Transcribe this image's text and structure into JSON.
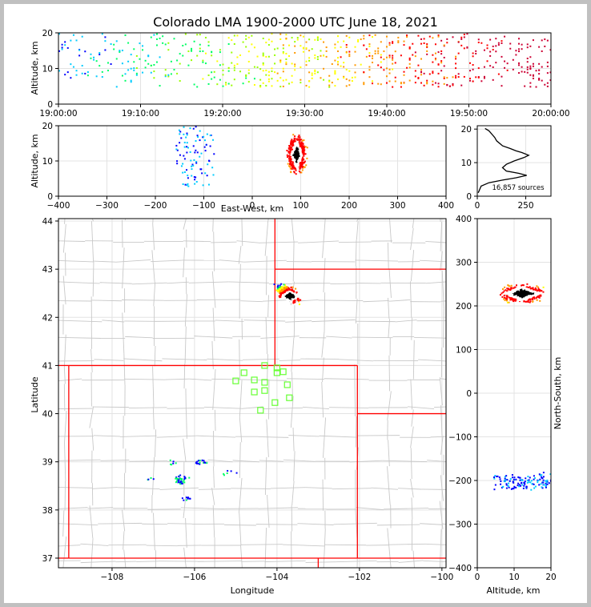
{
  "title": "Colorado LMA 1900-2000 UTC June 18, 2021",
  "palette": [
    "#0000ff",
    "#00ccff",
    "#00ff66",
    "#99ff00",
    "#ffff00",
    "#ff9900",
    "#ff0000",
    "#cc0033",
    "#ffffff",
    "#888888",
    "#000000"
  ],
  "map": {
    "state_line_color": "#ff0000",
    "county_line_color": "#c8c8c8",
    "station_color": "#66ff33"
  },
  "chart_data": [
    {
      "id": "time-height",
      "type": "heatmap",
      "xlabel": "",
      "ylabel": "Altitude, km",
      "xlim": [
        "19:00:00",
        "20:00:00"
      ],
      "ylim": [
        0,
        20
      ],
      "x_ticks": [
        "19:00:00",
        "19:10:00",
        "19:20:00",
        "19:30:00",
        "19:40:00",
        "19:50:00",
        "20:00:00"
      ],
      "y_ticks": [
        "0",
        "10",
        "20"
      ],
      "grid": true
    },
    {
      "id": "east-west-height",
      "type": "heatmap",
      "xlabel": "East-West, km",
      "ylabel": "Altitude, km",
      "xlim": [
        -400,
        400
      ],
      "ylim": [
        0,
        20
      ],
      "x_ticks": [
        "−400",
        "−300",
        "−200",
        "−100",
        "0",
        "100",
        "200",
        "300",
        "400"
      ],
      "y_ticks": [
        "0",
        "10",
        "20"
      ],
      "grid": true
    },
    {
      "id": "altitude-histogram",
      "type": "line",
      "xlim": [
        0,
        380
      ],
      "ylim": [
        0,
        21
      ],
      "x_ticks": [
        "0",
        "250"
      ],
      "y_ticks": [
        "0",
        "10",
        "20"
      ],
      "annotation": "16,857 sources",
      "profile": [
        [
          5,
          1
        ],
        [
          20,
          3
        ],
        [
          60,
          4
        ],
        [
          130,
          4.8
        ],
        [
          200,
          5.5
        ],
        [
          255,
          6.2
        ],
        [
          215,
          6.8
        ],
        [
          150,
          7.5
        ],
        [
          130,
          8.5
        ],
        [
          150,
          9.5
        ],
        [
          190,
          10.5
        ],
        [
          240,
          11.5
        ],
        [
          265,
          12.2
        ],
        [
          230,
          13
        ],
        [
          200,
          13.5
        ],
        [
          170,
          14.2
        ],
        [
          130,
          15
        ],
        [
          120,
          15.5
        ],
        [
          100,
          16.5
        ],
        [
          90,
          17.5
        ],
        [
          75,
          18.5
        ],
        [
          60,
          19.5
        ],
        [
          40,
          20.2
        ]
      ]
    },
    {
      "id": "plan-view",
      "type": "heatmap",
      "xlabel": "Longitude",
      "ylabel": "Latitude",
      "xlim": [
        -109.3,
        -99.9
      ],
      "ylim": [
        36.8,
        44.05
      ],
      "x_ticks": [
        "−108",
        "−106",
        "−104",
        "−102",
        "−100"
      ],
      "y_ticks": [
        "37",
        "38",
        "39",
        "40",
        "41",
        "42",
        "43",
        "44"
      ],
      "grid": true
    },
    {
      "id": "north-south-height",
      "type": "heatmap",
      "xlabel": "Altitude, km",
      "ylabel": "North-South, km",
      "xlim": [
        0,
        20
      ],
      "ylim": [
        -400,
        400
      ],
      "x_ticks": [
        "0",
        "10",
        "20"
      ],
      "y_ticks": [
        "−400",
        "−300",
        "−200",
        "−100",
        "0",
        "100",
        "200",
        "300",
        "400"
      ],
      "grid": true
    }
  ]
}
